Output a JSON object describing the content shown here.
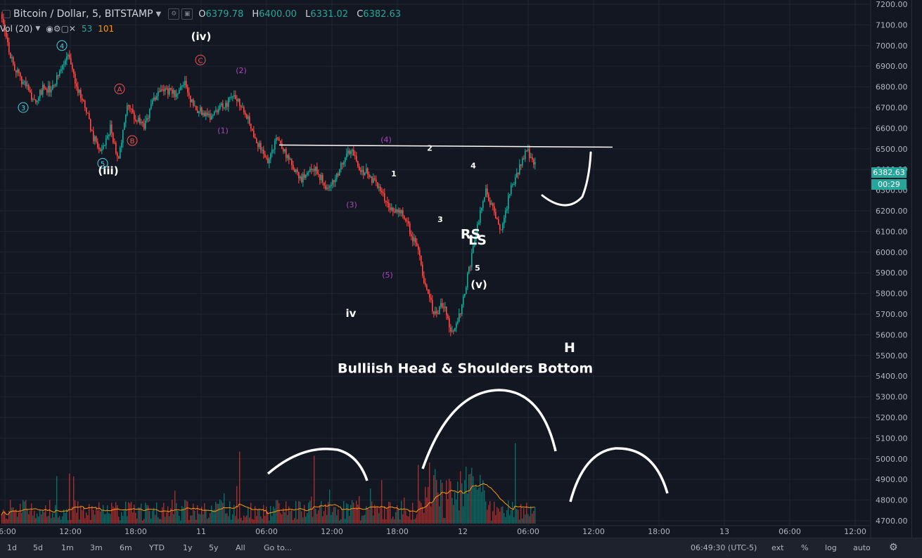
{
  "header": {
    "symbol": "Bitcoin / Dollar, 5, BITSTAMP",
    "open_label": "O",
    "open": "6379.78",
    "high_label": "H",
    "high": "6400.00",
    "low_label": "L",
    "low": "6331.02",
    "close_label": "C",
    "close": "6382.63",
    "dropdown_icon": "chevron-down-icon"
  },
  "volume_indicator": {
    "label": "Vol (20)",
    "value1": "53",
    "value2": "101"
  },
  "price_tag": {
    "value": "6382.63",
    "countdown": "00:29"
  },
  "bottom_bar": {
    "ranges": [
      "1d",
      "5d",
      "1m",
      "3m",
      "6m",
      "YTD",
      "1y",
      "5y",
      "All"
    ],
    "goto": "Go to...",
    "clock": "06:49:30 (UTC-5)",
    "options": [
      "ext",
      "%",
      "log",
      "auto"
    ]
  },
  "colors": {
    "up": "#26a69a",
    "down": "#ef5350",
    "cyan": "#4dd0e1",
    "red": "#ef5350",
    "purple": "#ab47bc",
    "background": "#131722"
  },
  "chart_data": {
    "type": "candlestick",
    "y_ticks": [
      7200,
      7100,
      7000,
      6900,
      6800,
      6700,
      6600,
      6500,
      6400,
      6300,
      6200,
      6100,
      6000,
      5900,
      5800,
      5700,
      5600,
      5500,
      5400,
      5300,
      5200,
      5100,
      5000,
      4900,
      4800,
      4700
    ],
    "ylim": [
      4670,
      7220
    ],
    "x_ticks": [
      "06:00",
      "12:00",
      "18:00",
      "11",
      "06:00",
      "12:00",
      "18:00",
      "12",
      "06:00",
      "12:00",
      "18:00",
      "13",
      "06:00",
      "12:00"
    ],
    "price_path": [
      [
        7150,
        6950,
        6850,
        6800,
        6720,
        6800,
        6780,
        6880,
        6950,
        6800,
        6700,
        6550,
        6480,
        6600,
        6450,
        6700
      ],
      [
        6650,
        6600,
        6720,
        6800,
        6780,
        6760,
        6820,
        6700,
        6680,
        6660,
        6700,
        6720,
        6760,
        6700,
        6600,
        6500
      ],
      [
        6440,
        6560,
        6480,
        6400,
        6350,
        6420,
        6380,
        6300,
        6350,
        6450,
        6500,
        6400,
        6380,
        6320,
        6250,
        6200
      ],
      [
        6200,
        6100,
        6000,
        5800,
        5700,
        5750,
        5600,
        5700,
        5900,
        6100,
        6300,
        6200,
        6100,
        6300,
        6400,
        6500,
        6420
      ]
    ],
    "neckline": 6515,
    "annotations": [
      {
        "text": "3",
        "color": "cyan",
        "circled": true,
        "price": 6700
      },
      {
        "text": "4",
        "color": "cyan",
        "circled": true,
        "price": 7000
      },
      {
        "text": "5",
        "color": "cyan",
        "circled": true,
        "price": 6430
      },
      {
        "text": "(iii)",
        "color": "white",
        "price": 6390
      },
      {
        "text": "A",
        "color": "red",
        "circled": true,
        "price": 6790
      },
      {
        "text": "B",
        "color": "red",
        "circled": true,
        "price": 6540
      },
      {
        "text": "C",
        "color": "red",
        "circled": true,
        "price": 6930
      },
      {
        "text": "(iv)",
        "color": "white",
        "price": 7040
      },
      {
        "text": "(1)",
        "color": "purple",
        "price": 6590
      },
      {
        "text": "(2)",
        "color": "purple",
        "price": 6880
      },
      {
        "text": "(3)",
        "color": "purple",
        "price": 6230
      },
      {
        "text": "(4)",
        "color": "purple",
        "price": 6545
      },
      {
        "text": "(5)",
        "color": "purple",
        "price": 5890
      },
      {
        "text": "1",
        "color": "white",
        "price": 6380
      },
      {
        "text": "2",
        "color": "white",
        "price": 6505
      },
      {
        "text": "3",
        "color": "white",
        "price": 6160
      },
      {
        "text": "4",
        "color": "white",
        "price": 6420
      },
      {
        "text": "5",
        "color": "white",
        "price": 5925
      },
      {
        "text": "(v)",
        "color": "white",
        "price": 5840
      },
      {
        "text": "iv",
        "color": "white",
        "price": 5700
      },
      {
        "text": "LS",
        "color": "white",
        "price": 6060
      },
      {
        "text": "H",
        "color": "white",
        "price": 5540
      },
      {
        "text": "RS",
        "color": "white",
        "price": 6090
      },
      {
        "text": "Bulliish Head & Shoulders Bottom",
        "color": "white",
        "price": 5440
      }
    ]
  }
}
